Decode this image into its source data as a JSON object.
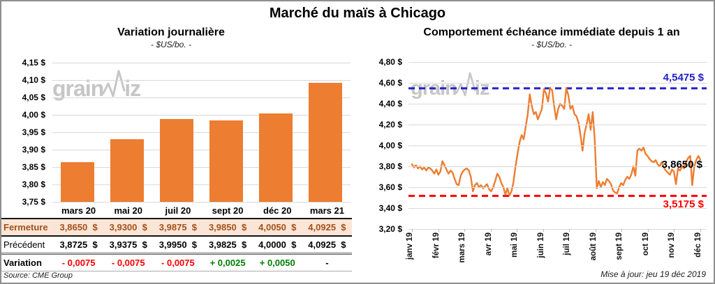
{
  "page": {
    "title": "Marché du maïs à Chicago"
  },
  "source_note": "Source: CME Group",
  "update_note": "Mise à jour: jeu 19 déc 2019",
  "watermark": {
    "part1": "grain",
    "part2": "iz"
  },
  "colors": {
    "accent_orange": "#ED7D31",
    "resistance_blue": "#2121CB",
    "support_red": "#FE0000",
    "variation_green": "#008000",
    "close_row_bg": "#FBE5D6",
    "close_row_text": "#A3511A",
    "grid": "#D9D9D9",
    "watermark_gray": "#C6C6C6"
  },
  "chart_data": [
    {
      "id": "daily_variation",
      "type": "bar",
      "title": "Variation journalière",
      "subtitle": "- $US/bo. -",
      "categories": [
        "mars 20",
        "mai 20",
        "juil 20",
        "sept 20",
        "déc 20",
        "mars 21"
      ],
      "values": [
        3.865,
        3.93,
        3.9875,
        3.985,
        4.005,
        4.0925
      ],
      "ylim": [
        3.75,
        4.15
      ],
      "ytick_step": 0.05,
      "grid": true,
      "bar_color": "#ED7D31",
      "table": {
        "rows": [
          {
            "id": "close",
            "label": "Fermeture",
            "values": [
              "3,8650  $",
              "3,9300  $",
              "3,9875  $",
              "3,9850  $",
              "4,0050  $",
              "4,0925  $"
            ]
          },
          {
            "id": "previous",
            "label": "Précédent",
            "values": [
              "3,8725  $",
              "3,9375  $",
              "3,9950  $",
              "3,9825  $",
              "4,0000  $",
              "4,0925  $"
            ]
          },
          {
            "id": "variation",
            "label": "Variation",
            "values": [
              "- 0,0075",
              "- 0,0075",
              "- 0,0075",
              "+ 0,0025",
              "+ 0,0050",
              "-"
            ]
          }
        ]
      }
    },
    {
      "id": "front_month_year",
      "type": "line",
      "title": "Comportement échéance immédiate depuis 1 an",
      "subtitle": "- $US/bo. -",
      "x_categories": [
        "janv 19",
        "févr 19",
        "mars 19",
        "avr 19",
        "mai 19",
        "juin 19",
        "juil 19",
        "août 19",
        "sept 19",
        "oct 19",
        "nov 19",
        "déc 19"
      ],
      "ylim": [
        3.2,
        4.8
      ],
      "ytick_step": 0.2,
      "grid": true,
      "legend": "none",
      "series": [
        {
          "name": "échéance immédiate",
          "color": "#ED7D31",
          "values": [
            3.82,
            3.79,
            3.81,
            3.78,
            3.8,
            3.77,
            3.79,
            3.76,
            3.79,
            3.78,
            3.76,
            3.73,
            3.77,
            3.72,
            3.75,
            3.85,
            3.81,
            3.77,
            3.73,
            3.76,
            3.74,
            3.68,
            3.63,
            3.62,
            3.71,
            3.75,
            3.77,
            3.78,
            3.76,
            3.7,
            3.56,
            3.62,
            3.64,
            3.6,
            3.62,
            3.59,
            3.61,
            3.63,
            3.58,
            3.56,
            3.6,
            3.66,
            3.73,
            3.7,
            3.64,
            3.6,
            3.53,
            3.59,
            3.52,
            3.56,
            3.65,
            3.8,
            3.92,
            4.03,
            4.1,
            4.06,
            4.18,
            4.3,
            4.49,
            4.38,
            4.3,
            4.32,
            4.25,
            4.3,
            4.35,
            4.54,
            4.5,
            4.42,
            4.55,
            4.53,
            4.38,
            4.25,
            4.35,
            4.4,
            4.38,
            4.35,
            4.55,
            4.48,
            4.35,
            4.38,
            4.3,
            4.28,
            4.22,
            4.1,
            3.95,
            4.12,
            4.2,
            4.3,
            4.15,
            4.32,
            4.05,
            3.59,
            3.66,
            3.6,
            3.65,
            3.62,
            3.68,
            3.66,
            3.63,
            3.57,
            3.55,
            3.54,
            3.6,
            3.64,
            3.62,
            3.67,
            3.7,
            3.68,
            3.72,
            3.8,
            3.71,
            3.95,
            3.97,
            3.95,
            3.98,
            3.92,
            3.9,
            3.87,
            3.85,
            3.84,
            3.86,
            3.82,
            3.8,
            3.84,
            3.79,
            3.76,
            3.74,
            3.72,
            3.77,
            3.75,
            3.63,
            3.78,
            3.76,
            3.8,
            3.78,
            3.84,
            3.88,
            3.9,
            3.62,
            3.8,
            3.86,
            3.9,
            3.865
          ]
        }
      ],
      "annotations": [
        {
          "type": "hline",
          "role": "resistance",
          "value": 4.5475,
          "label": "4,5475 $",
          "color": "#2121CB",
          "style": "dashed"
        },
        {
          "type": "hline",
          "role": "support",
          "value": 3.5175,
          "label": "3,5175 $",
          "color": "#FE0000",
          "style": "dashed"
        },
        {
          "type": "last_value",
          "value": 3.865,
          "label": "3,8650 $",
          "color": "#000000"
        }
      ]
    }
  ]
}
